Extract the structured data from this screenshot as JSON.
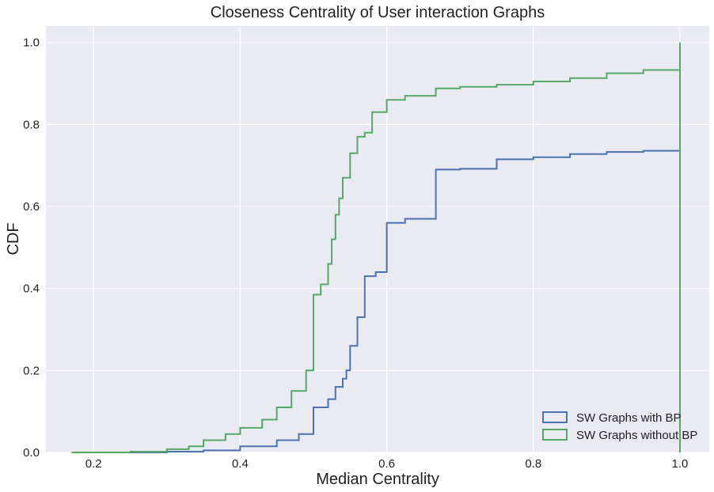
{
  "chart_data": {
    "type": "line",
    "subtype": "step-cdf",
    "title": "Closeness Centrality of User interaction Graphs",
    "xlabel": "Median Centrality",
    "ylabel": "CDF",
    "xlim": [
      0.135,
      1.04
    ],
    "ylim": [
      0.0,
      1.04
    ],
    "x_ticks": [
      0.2,
      0.4,
      0.6,
      0.8,
      1.0
    ],
    "x_tick_labels": [
      "0.2",
      "0.4",
      "0.6",
      "0.8",
      "1.0"
    ],
    "y_ticks": [
      0.0,
      0.2,
      0.4,
      0.6,
      0.8,
      1.0
    ],
    "y_tick_labels": [
      "0.0",
      "0.2",
      "0.4",
      "0.6",
      "0.8",
      "1.0"
    ],
    "grid": true,
    "legend_position": "lower-right",
    "background": "#eaeaf2",
    "series": [
      {
        "name": "SW Graphs with BP",
        "color": "#4c72b0",
        "x": [
          0.17,
          0.3,
          0.35,
          0.4,
          0.45,
          0.48,
          0.5,
          0.5,
          0.52,
          0.53,
          0.54,
          0.545,
          0.55,
          0.56,
          0.57,
          0.57,
          0.585,
          0.6,
          0.6,
          0.625,
          0.667,
          0.667,
          0.7,
          0.75,
          0.75,
          0.8,
          0.85,
          0.9,
          0.95,
          1.0,
          1.0,
          1.0
        ],
        "y": [
          0.0,
          0.002,
          0.005,
          0.015,
          0.03,
          0.045,
          0.05,
          0.11,
          0.13,
          0.16,
          0.18,
          0.2,
          0.26,
          0.33,
          0.33,
          0.43,
          0.44,
          0.44,
          0.56,
          0.57,
          0.57,
          0.69,
          0.692,
          0.695,
          0.715,
          0.72,
          0.728,
          0.733,
          0.736,
          0.737,
          0.0,
          1.0
        ]
      },
      {
        "name": "SW Graphs without BP",
        "color": "#55a868",
        "x": [
          0.17,
          0.25,
          0.3,
          0.33,
          0.35,
          0.38,
          0.4,
          0.43,
          0.45,
          0.47,
          0.49,
          0.5,
          0.5,
          0.51,
          0.52,
          0.525,
          0.53,
          0.535,
          0.54,
          0.55,
          0.56,
          0.57,
          0.58,
          0.6,
          0.6,
          0.625,
          0.667,
          0.7,
          0.75,
          0.8,
          0.85,
          0.9,
          0.95,
          1.0,
          1.0,
          1.0
        ],
        "y": [
          0.0,
          0.002,
          0.008,
          0.015,
          0.03,
          0.045,
          0.06,
          0.08,
          0.11,
          0.15,
          0.2,
          0.22,
          0.385,
          0.41,
          0.46,
          0.52,
          0.58,
          0.62,
          0.67,
          0.73,
          0.77,
          0.78,
          0.83,
          0.86,
          0.86,
          0.87,
          0.888,
          0.892,
          0.897,
          0.905,
          0.913,
          0.925,
          0.933,
          0.935,
          0.0,
          1.0
        ]
      }
    ]
  }
}
